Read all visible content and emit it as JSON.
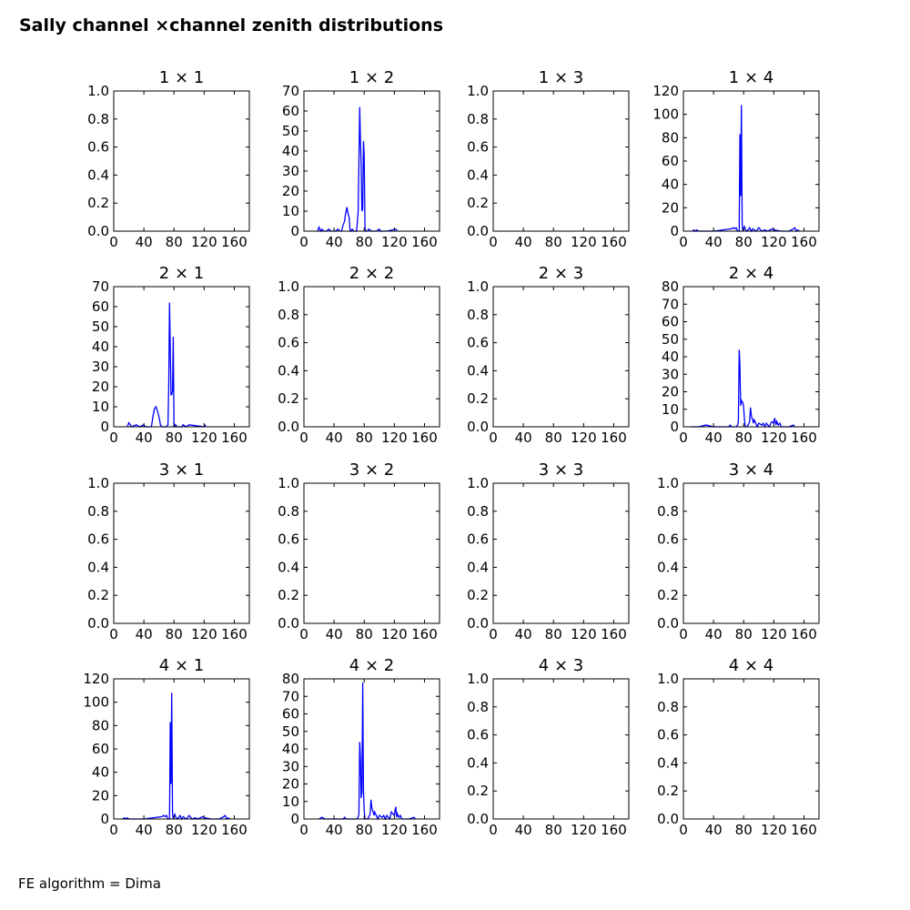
{
  "title": "Sally channel ×channel zenith distributions",
  "footer": "FE algorithm = Dima",
  "colors": {
    "series": "#0000ff",
    "axes": "#000000",
    "background": "#ffffff"
  },
  "chart_data": [
    {
      "type": "line",
      "title": "1 × 1",
      "xlim": [
        0,
        180
      ],
      "ylim": [
        0,
        1.0
      ],
      "xticks": [
        0,
        40,
        80,
        120,
        160
      ],
      "yticks": [
        "0.0",
        "0.2",
        "0.4",
        "0.6",
        "0.8",
        "1.0"
      ],
      "series": []
    },
    {
      "type": "line",
      "title": "1 × 2",
      "xlim": [
        0,
        180
      ],
      "ylim": [
        0,
        70
      ],
      "xticks": [
        0,
        40,
        80,
        120,
        160
      ],
      "yticks": [
        "0",
        "10",
        "20",
        "30",
        "40",
        "50",
        "60",
        "70"
      ],
      "series": [
        {
          "x": [
            18,
            20,
            21,
            22,
            24,
            26,
            30,
            33,
            36,
            42,
            45,
            48,
            50,
            52,
            54,
            55,
            56,
            57,
            58,
            59,
            60,
            61,
            62,
            64,
            66,
            70,
            72,
            73,
            74,
            75,
            76,
            77,
            78,
            79,
            80,
            81,
            82,
            84,
            86,
            90,
            96,
            100,
            102,
            110,
            122,
            124
          ],
          "y": [
            0,
            2,
            1,
            0,
            1,
            0,
            0,
            1,
            0,
            0,
            1,
            0,
            0,
            3,
            5,
            8,
            10,
            12,
            10,
            8,
            7,
            1,
            0,
            1,
            0,
            0,
            10,
            34,
            62,
            45,
            33,
            10,
            11,
            45,
            38,
            2,
            0,
            0,
            1,
            0,
            0,
            1,
            0,
            0,
            1,
            0
          ]
        }
      ]
    },
    {
      "type": "line",
      "title": "1 × 3",
      "xlim": [
        0,
        180
      ],
      "ylim": [
        0,
        1.0
      ],
      "xticks": [
        0,
        40,
        80,
        120,
        160
      ],
      "yticks": [
        "0.0",
        "0.2",
        "0.4",
        "0.6",
        "0.8",
        "1.0"
      ],
      "series": []
    },
    {
      "type": "line",
      "title": "1 × 4",
      "xlim": [
        0,
        180
      ],
      "ylim": [
        0,
        120
      ],
      "xticks": [
        0,
        40,
        80,
        120,
        160
      ],
      "yticks": [
        "0",
        "20",
        "40",
        "60",
        "80",
        "100",
        "120"
      ],
      "series": [
        {
          "x": [
            12,
            14,
            16,
            18,
            20,
            40,
            64,
            66,
            68,
            70,
            72,
            74,
            75,
            76,
            77,
            78,
            79,
            80,
            81,
            82,
            84,
            86,
            88,
            90,
            92,
            96,
            98,
            100,
            104,
            108,
            112,
            118,
            120,
            130,
            140,
            146,
            148,
            150,
            152,
            154
          ],
          "y": [
            0,
            1,
            0,
            1,
            0,
            0,
            2,
            3,
            2,
            3,
            0,
            0,
            83,
            30,
            108,
            5,
            0,
            2,
            4,
            2,
            0,
            1,
            3,
            0,
            2,
            0,
            1,
            3,
            0,
            1,
            0,
            2,
            1,
            0,
            0,
            2,
            3,
            0,
            1,
            0
          ]
        }
      ]
    },
    {
      "type": "line",
      "title": "2 × 1",
      "xlim": [
        0,
        180
      ],
      "ylim": [
        0,
        70
      ],
      "xticks": [
        0,
        40,
        80,
        120,
        160
      ],
      "yticks": [
        "0",
        "10",
        "20",
        "30",
        "40",
        "50",
        "60",
        "70"
      ],
      "series": [
        {
          "x": [
            18,
            20,
            22,
            24,
            30,
            34,
            40,
            42,
            50,
            52,
            54,
            56,
            58,
            60,
            62,
            64,
            70,
            72,
            73,
            74,
            75,
            76,
            77,
            78,
            79,
            80,
            81,
            82,
            84,
            86,
            90,
            92,
            96,
            100,
            120,
            122
          ],
          "y": [
            0,
            2,
            1,
            0,
            1,
            0,
            1,
            0,
            0,
            5,
            9,
            10,
            8,
            5,
            1,
            0,
            0,
            1,
            20,
            62,
            40,
            16,
            16,
            18,
            45,
            0,
            0,
            1,
            0,
            0,
            0,
            1,
            0,
            1,
            0,
            1
          ]
        }
      ]
    },
    {
      "type": "line",
      "title": "2 × 2",
      "xlim": [
        0,
        180
      ],
      "ylim": [
        0,
        1.0
      ],
      "xticks": [
        0,
        40,
        80,
        120,
        160
      ],
      "yticks": [
        "0.0",
        "0.2",
        "0.4",
        "0.6",
        "0.8",
        "1.0"
      ],
      "series": []
    },
    {
      "type": "line",
      "title": "2 × 3",
      "xlim": [
        0,
        180
      ],
      "ylim": [
        0,
        1.0
      ],
      "xticks": [
        0,
        40,
        80,
        120,
        160
      ],
      "yticks": [
        "0.0",
        "0.2",
        "0.4",
        "0.6",
        "0.8",
        "1.0"
      ],
      "series": []
    },
    {
      "type": "line",
      "title": "2 × 4",
      "xlim": [
        0,
        180
      ],
      "ylim": [
        0,
        80
      ],
      "xticks": [
        0,
        40,
        80,
        120,
        160
      ],
      "yticks": [
        "0",
        "10",
        "20",
        "30",
        "40",
        "50",
        "60",
        "70",
        "80"
      ],
      "series": [
        {
          "x": [
            10,
            20,
            30,
            40,
            60,
            62,
            64,
            70,
            72,
            73,
            74,
            75,
            76,
            77,
            78,
            79,
            80,
            81,
            82,
            84,
            86,
            88,
            89,
            90,
            91,
            92,
            93,
            94,
            96,
            98,
            100,
            104,
            106,
            108,
            110,
            112,
            114,
            116,
            118,
            120,
            121,
            122,
            123,
            124,
            126,
            128,
            130,
            132,
            140,
            146,
            148
          ],
          "y": [
            0,
            0,
            1,
            0,
            0,
            1,
            0,
            0,
            1,
            3,
            44,
            35,
            12,
            15,
            14,
            14,
            11,
            5,
            0,
            0,
            1,
            3,
            11,
            7,
            5,
            4,
            2,
            4,
            2,
            0,
            2,
            1,
            2,
            0,
            2,
            1,
            0,
            2,
            3,
            2,
            5,
            3,
            1,
            3,
            1,
            2,
            0,
            0,
            0,
            1,
            0
          ]
        }
      ]
    },
    {
      "type": "line",
      "title": "3 × 1",
      "xlim": [
        0,
        180
      ],
      "ylim": [
        0,
        1.0
      ],
      "xticks": [
        0,
        40,
        80,
        120,
        160
      ],
      "yticks": [
        "0.0",
        "0.2",
        "0.4",
        "0.6",
        "0.8",
        "1.0"
      ],
      "series": []
    },
    {
      "type": "line",
      "title": "3 × 2",
      "xlim": [
        0,
        180
      ],
      "ylim": [
        0,
        1.0
      ],
      "xticks": [
        0,
        40,
        80,
        120,
        160
      ],
      "yticks": [
        "0.0",
        "0.2",
        "0.4",
        "0.6",
        "0.8",
        "1.0"
      ],
      "series": []
    },
    {
      "type": "line",
      "title": "3 × 3",
      "xlim": [
        0,
        180
      ],
      "ylim": [
        0,
        1.0
      ],
      "xticks": [
        0,
        40,
        80,
        120,
        160
      ],
      "yticks": [
        "0.0",
        "0.2",
        "0.4",
        "0.6",
        "0.8",
        "1.0"
      ],
      "series": []
    },
    {
      "type": "line",
      "title": "3 × 4",
      "xlim": [
        0,
        180
      ],
      "ylim": [
        0,
        1.0
      ],
      "xticks": [
        0,
        40,
        80,
        120,
        160
      ],
      "yticks": [
        "0.0",
        "0.2",
        "0.4",
        "0.6",
        "0.8",
        "1.0"
      ],
      "series": []
    },
    {
      "type": "line",
      "title": "4 × 1",
      "xlim": [
        0,
        180
      ],
      "ylim": [
        0,
        120
      ],
      "xticks": [
        0,
        40,
        80,
        120,
        160
      ],
      "yticks": [
        "0",
        "20",
        "40",
        "60",
        "80",
        "100",
        "120"
      ],
      "series": [
        {
          "x": [
            12,
            14,
            16,
            18,
            20,
            40,
            64,
            66,
            68,
            70,
            72,
            74,
            75,
            76,
            77,
            78,
            79,
            80,
            81,
            82,
            84,
            86,
            88,
            90,
            92,
            96,
            98,
            100,
            104,
            108,
            112,
            118,
            120,
            130,
            140,
            146,
            148,
            150,
            152,
            154
          ],
          "y": [
            0,
            1,
            0,
            1,
            0,
            0,
            2,
            3,
            2,
            3,
            0,
            0,
            83,
            30,
            108,
            5,
            0,
            2,
            4,
            2,
            0,
            1,
            3,
            0,
            2,
            0,
            1,
            3,
            0,
            1,
            0,
            2,
            1,
            0,
            0,
            2,
            3,
            0,
            1,
            0
          ]
        }
      ]
    },
    {
      "type": "line",
      "title": "4 × 2",
      "xlim": [
        0,
        180
      ],
      "ylim": [
        0,
        80
      ],
      "xticks": [
        0,
        40,
        80,
        120,
        160
      ],
      "yticks": [
        "0",
        "10",
        "20",
        "30",
        "40",
        "50",
        "60",
        "70",
        "80"
      ],
      "series": [
        {
          "x": [
            20,
            24,
            28,
            40,
            52,
            54,
            56,
            70,
            72,
            73,
            74,
            75,
            76,
            77,
            78,
            79,
            80,
            81,
            82,
            84,
            86,
            88,
            89,
            90,
            91,
            92,
            93,
            94,
            96,
            98,
            100,
            104,
            106,
            108,
            110,
            112,
            114,
            116,
            118,
            120,
            121,
            122,
            123,
            124,
            126,
            128,
            130,
            132,
            140,
            146,
            148
          ],
          "y": [
            0,
            1,
            0,
            0,
            0,
            1,
            0,
            0,
            1,
            3,
            44,
            35,
            12,
            15,
            78,
            17,
            5,
            0,
            0,
            0,
            1,
            3,
            11,
            7,
            5,
            4,
            2,
            4,
            2,
            0,
            2,
            1,
            2,
            0,
            2,
            1,
            0,
            4,
            3,
            2,
            5,
            7,
            1,
            3,
            1,
            2,
            0,
            0,
            0,
            1,
            0
          ]
        }
      ]
    },
    {
      "type": "line",
      "title": "4 × 3",
      "xlim": [
        0,
        180
      ],
      "ylim": [
        0,
        1.0
      ],
      "xticks": [
        0,
        40,
        80,
        120,
        160
      ],
      "yticks": [
        "0.0",
        "0.2",
        "0.4",
        "0.6",
        "0.8",
        "1.0"
      ],
      "series": []
    },
    {
      "type": "line",
      "title": "4 × 4",
      "xlim": [
        0,
        180
      ],
      "ylim": [
        0,
        1.0
      ],
      "xticks": [
        0,
        40,
        80,
        120,
        160
      ],
      "yticks": [
        "0.0",
        "0.2",
        "0.4",
        "0.6",
        "0.8",
        "1.0"
      ],
      "series": []
    }
  ]
}
